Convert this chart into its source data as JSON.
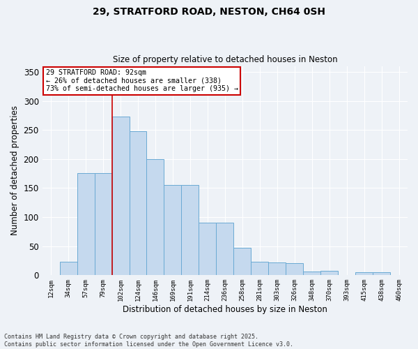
{
  "title1": "29, STRATFORD ROAD, NESTON, CH64 0SH",
  "title2": "Size of property relative to detached houses in Neston",
  "xlabel": "Distribution of detached houses by size in Neston",
  "ylabel": "Number of detached properties",
  "categories": [
    "12sqm",
    "34sqm",
    "57sqm",
    "79sqm",
    "102sqm",
    "124sqm",
    "146sqm",
    "169sqm",
    "191sqm",
    "214sqm",
    "236sqm",
    "258sqm",
    "281sqm",
    "303sqm",
    "326sqm",
    "348sqm",
    "370sqm",
    "393sqm",
    "415sqm",
    "438sqm",
    "460sqm"
  ],
  "values": [
    0,
    23,
    176,
    176,
    273,
    248,
    200,
    155,
    155,
    90,
    90,
    47,
    23,
    22,
    21,
    6,
    8,
    0,
    5,
    5,
    0
  ],
  "bar_color": "#c5d9ee",
  "bar_edge_color": "#6aaad4",
  "background_color": "#eef2f7",
  "grid_color": "#ffffff",
  "annotation_text": "29 STRATFORD ROAD: 92sqm\n← 26% of detached houses are smaller (338)\n73% of semi-detached houses are larger (935) →",
  "annotation_box_color": "#ffffff",
  "annotation_box_edge": "#cc0000",
  "vline_color": "#cc0000",
  "vline_x": 3.5,
  "ylim": [
    0,
    360
  ],
  "yticks": [
    0,
    50,
    100,
    150,
    200,
    250,
    300,
    350
  ],
  "footer1": "Contains HM Land Registry data © Crown copyright and database right 2025.",
  "footer2": "Contains public sector information licensed under the Open Government Licence v3.0."
}
